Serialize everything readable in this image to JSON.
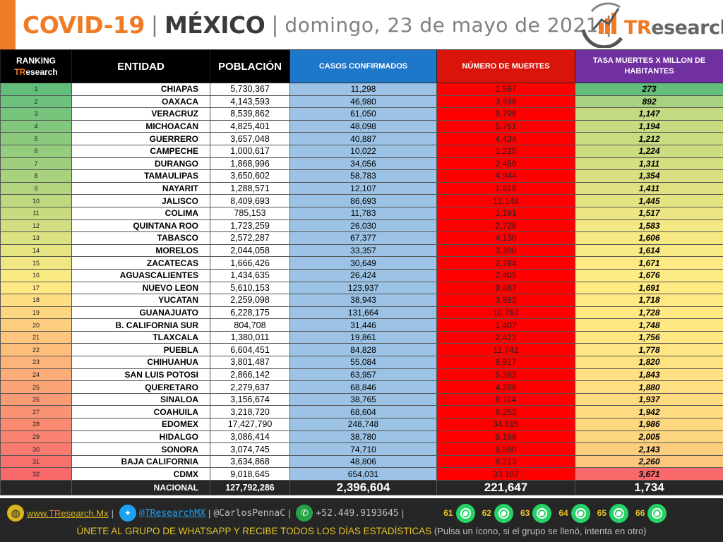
{
  "header": {
    "title_covid": "COVID-19",
    "sep": "|",
    "title_country": "MÉXICO",
    "title_date": "domingo, 23 de mayo de 2021",
    "date_sep": "|",
    "logo_prefix": "TR",
    "logo_suffix": "esearch"
  },
  "columns": {
    "ranking": "RANKING",
    "ranking_brand_tr": "TR",
    "ranking_brand_rest": "esearch",
    "entidad": "ENTIDAD",
    "poblacion": "POBLACIÓN",
    "casos": "CASOS CONFIRMADOS",
    "muertes": "NÚMERO DE MUERTES",
    "tasa": "TASA MUERTES X MILLON DE HABITANTES"
  },
  "rows": [
    {
      "rank": "1",
      "entidad": "CHIAPAS",
      "poblacion": "5,730,367",
      "casos": "11,298",
      "muertes": "1,567",
      "tasa": "273"
    },
    {
      "rank": "2",
      "entidad": "OAXACA",
      "poblacion": "4,143,593",
      "casos": "46,980",
      "muertes": "3,698",
      "tasa": "892"
    },
    {
      "rank": "3",
      "entidad": "VERACRUZ",
      "poblacion": "8,539,862",
      "casos": "61,050",
      "muertes": "9,796",
      "tasa": "1,147"
    },
    {
      "rank": "4",
      "entidad": "MICHOACAN",
      "poblacion": "4,825,401",
      "casos": "48,098",
      "muertes": "5,761",
      "tasa": "1,194"
    },
    {
      "rank": "5",
      "entidad": "GUERRERO",
      "poblacion": "3,657,048",
      "casos": "40,887",
      "muertes": "4,434",
      "tasa": "1,212"
    },
    {
      "rank": "6",
      "entidad": "CAMPECHE",
      "poblacion": "1,000,617",
      "casos": "10,022",
      "muertes": "1,225",
      "tasa": "1,224"
    },
    {
      "rank": "7",
      "entidad": "DURANGO",
      "poblacion": "1,868,996",
      "casos": "34,056",
      "muertes": "2,450",
      "tasa": "1,311"
    },
    {
      "rank": "8",
      "entidad": "TAMAULIPAS",
      "poblacion": "3,650,602",
      "casos": "58,783",
      "muertes": "4,944",
      "tasa": "1,354"
    },
    {
      "rank": "9",
      "entidad": "NAYARIT",
      "poblacion": "1,288,571",
      "casos": "12,107",
      "muertes": "1,818",
      "tasa": "1,411"
    },
    {
      "rank": "10",
      "entidad": "JALISCO",
      "poblacion": "8,409,693",
      "casos": "86,693",
      "muertes": "12,148",
      "tasa": "1,445"
    },
    {
      "rank": "11",
      "entidad": "COLIMA",
      "poblacion": "785,153",
      "casos": "11,783",
      "muertes": "1,191",
      "tasa": "1,517"
    },
    {
      "rank": "12",
      "entidad": "QUINTANA ROO",
      "poblacion": "1,723,259",
      "casos": "26,030",
      "muertes": "2,728",
      "tasa": "1,583"
    },
    {
      "rank": "13",
      "entidad": "TABASCO",
      "poblacion": "2,572,287",
      "casos": "67,377",
      "muertes": "4,130",
      "tasa": "1,606"
    },
    {
      "rank": "14",
      "entidad": "MORELOS",
      "poblacion": "2,044,058",
      "casos": "33,357",
      "muertes": "3,300",
      "tasa": "1,614"
    },
    {
      "rank": "15",
      "entidad": "ZACATECAS",
      "poblacion": "1,666,426",
      "casos": "30,649",
      "muertes": "2,784",
      "tasa": "1,671"
    },
    {
      "rank": "16",
      "entidad": "AGUASCALIENTES",
      "poblacion": "1,434,635",
      "casos": "26,424",
      "muertes": "2,405",
      "tasa": "1,676"
    },
    {
      "rank": "17",
      "entidad": "NUEVO LEON",
      "poblacion": "5,610,153",
      "casos": "123,937",
      "muertes": "9,487",
      "tasa": "1,691"
    },
    {
      "rank": "18",
      "entidad": "YUCATAN",
      "poblacion": "2,259,098",
      "casos": "38,943",
      "muertes": "3,882",
      "tasa": "1,718"
    },
    {
      "rank": "19",
      "entidad": "GUANAJUATO",
      "poblacion": "6,228,175",
      "casos": "131,664",
      "muertes": "10,762",
      "tasa": "1,728"
    },
    {
      "rank": "20",
      "entidad": "B. CALIFORNIA SUR",
      "poblacion": "804,708",
      "casos": "31,446",
      "muertes": "1,407",
      "tasa": "1,748"
    },
    {
      "rank": "21",
      "entidad": "TLAXCALA",
      "poblacion": "1,380,011",
      "casos": "19,861",
      "muertes": "2,423",
      "tasa": "1,756"
    },
    {
      "rank": "22",
      "entidad": "PUEBLA",
      "poblacion": "6,604,451",
      "casos": "84,828",
      "muertes": "11,742",
      "tasa": "1,778"
    },
    {
      "rank": "23",
      "entidad": "CHIHUAHUA",
      "poblacion": "3,801,487",
      "casos": "55,084",
      "muertes": "6,917",
      "tasa": "1,820"
    },
    {
      "rank": "24",
      "entidad": "SAN LUIS POTOSI",
      "poblacion": "2,866,142",
      "casos": "63,957",
      "muertes": "5,283",
      "tasa": "1,843"
    },
    {
      "rank": "25",
      "entidad": "QUERETARO",
      "poblacion": "2,279,637",
      "casos": "68,846",
      "muertes": "4,286",
      "tasa": "1,880"
    },
    {
      "rank": "26",
      "entidad": "SINALOA",
      "poblacion": "3,156,674",
      "casos": "38,765",
      "muertes": "6,114",
      "tasa": "1,937"
    },
    {
      "rank": "27",
      "entidad": "COAHUILA",
      "poblacion": "3,218,720",
      "casos": "68,604",
      "muertes": "6,252",
      "tasa": "1,942"
    },
    {
      "rank": "28",
      "entidad": "EDOMEX",
      "poblacion": "17,427,790",
      "casos": "248,748",
      "muertes": "34,615",
      "tasa": "1,986"
    },
    {
      "rank": "29",
      "entidad": "HIDALGO",
      "poblacion": "3,086,414",
      "casos": "38,780",
      "muertes": "6,188",
      "tasa": "2,005"
    },
    {
      "rank": "30",
      "entidad": "SONORA",
      "poblacion": "3,074,745",
      "casos": "74,710",
      "muertes": "6,590",
      "tasa": "2,143"
    },
    {
      "rank": "31",
      "entidad": "BAJA CALIFORNIA",
      "poblacion": "3,634,868",
      "casos": "48,806",
      "muertes": "8,213",
      "tasa": "2,260"
    },
    {
      "rank": "32",
      "entidad": "CDMX",
      "poblacion": "9,018,645",
      "casos": "654,031",
      "muertes": "33,107",
      "tasa": "3,671"
    }
  ],
  "totals": {
    "label": "NACIONAL",
    "poblacion": "127,792,286",
    "casos": "2,396,604",
    "muertes": "221,647",
    "tasa": "1,734"
  },
  "footer": {
    "web_prefix": "www.",
    "web_tr": "TR",
    "web_rest": "esearch.Mx",
    "twitter": "@TResearchMX",
    "twitter2": "@CarlosPennaC",
    "phone": "+52.449.9193645",
    "sep": "|",
    "whatsapp_groups": [
      "61",
      "62",
      "63",
      "64",
      "65",
      "66"
    ],
    "cta_main": "ÚNETE AL GRUPO DE WHATSAPP Y RECIBE TODOS LOS DÍAS ESTADÍSTICAS",
    "cta_note": "(Pulsa un ícono, si el grupo se llenó, intenta en otro)"
  },
  "colors": {
    "accent_orange": "#ef7b26",
    "casos_blue": "#9cc3e6",
    "muertes_red": "#ff0000",
    "header_blue": "#1f77c9",
    "header_red": "#d9140b",
    "header_purple": "#7030a0",
    "scale_low": "#63be7b",
    "scale_mid": "#ffeb84",
    "scale_high": "#f8696b",
    "whatsapp_green": "#25d366"
  }
}
